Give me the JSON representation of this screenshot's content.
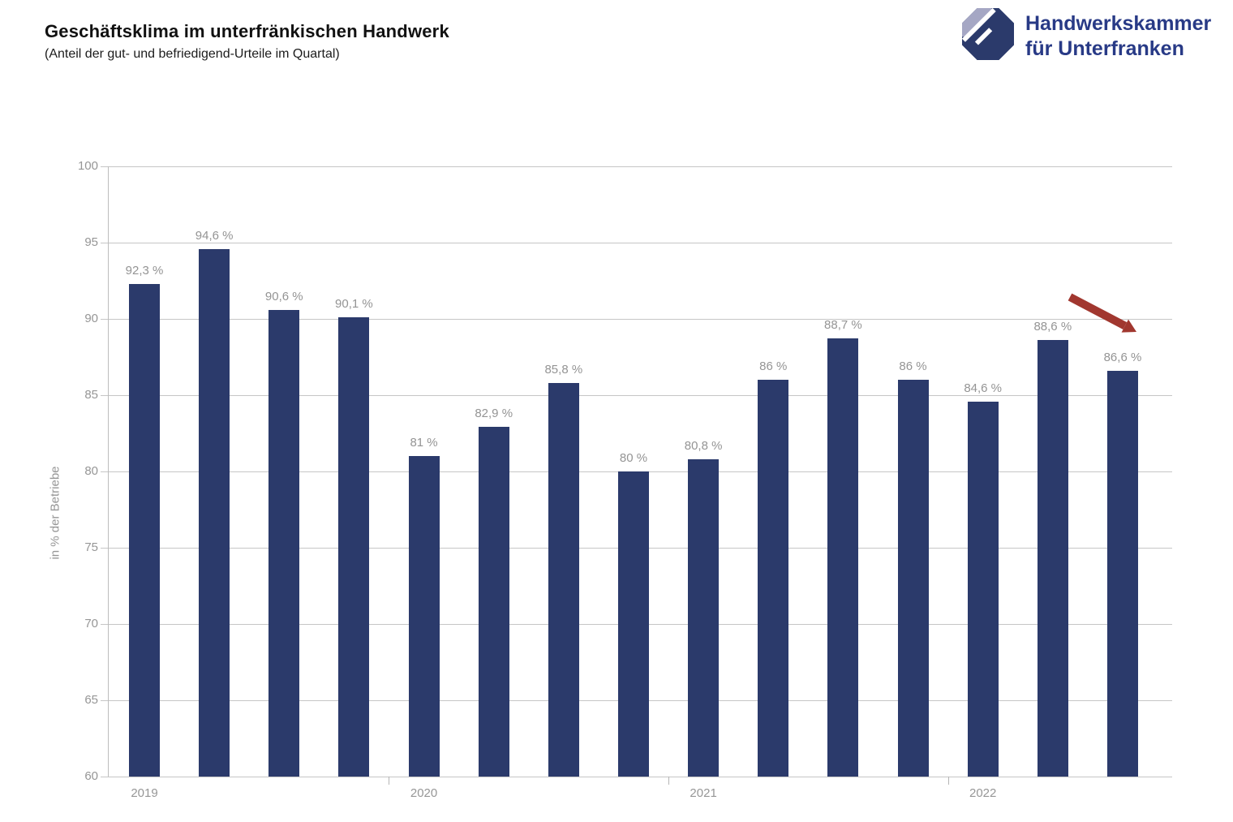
{
  "header": {
    "title": "Geschäftsklima im unterfränkischen Handwerk",
    "subtitle": "(Anteil der gut- und befriedigend-Urteile im Quartal)"
  },
  "logo": {
    "name": "Handwerkskammer für Unterfranken",
    "line1": "Handwerkskammer",
    "line2": "für Unterfranken",
    "icon": "octagon-emblem-icon",
    "colors": {
      "dark": "#2b3a6b",
      "light": "#a5a7c4",
      "text": "#283a86"
    }
  },
  "chart_data": {
    "type": "bar",
    "title": "Geschäftsklima im unterfränkischen Handwerk",
    "subtitle": "(Anteil der gut- und befriedigend-Urteile im Quartal)",
    "ylabel": "in % der Betriebe",
    "xlabel": "",
    "ylim": [
      60,
      100
    ],
    "yticks": [
      100,
      95,
      90,
      85,
      80,
      75,
      70,
      65,
      60
    ],
    "grid": true,
    "legend": "none",
    "bar_color": "#2b3a6b",
    "value_label_color": "#949494",
    "bars": [
      {
        "period": "2019 Q1",
        "value": 92.3,
        "label": "92,3 %"
      },
      {
        "period": "2019 Q2",
        "value": 94.6,
        "label": "94,6 %"
      },
      {
        "period": "2019 Q3",
        "value": 90.6,
        "label": "90,6 %"
      },
      {
        "period": "2019 Q4",
        "value": 90.1,
        "label": "90,1 %"
      },
      {
        "period": "2020 Q1",
        "value": 81.0,
        "label": "81 %"
      },
      {
        "period": "2020 Q2",
        "value": 82.9,
        "label": "82,9 %"
      },
      {
        "period": "2020 Q3",
        "value": 85.8,
        "label": "85,8 %"
      },
      {
        "period": "2020 Q4",
        "value": 80.0,
        "label": "80 %"
      },
      {
        "period": "2021 Q1",
        "value": 80.8,
        "label": "80,8 %"
      },
      {
        "period": "2021 Q2",
        "value": 86.0,
        "label": "86 %"
      },
      {
        "period": "2021 Q3",
        "value": 88.7,
        "label": "88,7 %"
      },
      {
        "period": "2021 Q4",
        "value": 86.0,
        "label": "86 %"
      },
      {
        "period": "2022 Q1",
        "value": 84.6,
        "label": "84,6 %"
      },
      {
        "period": "2022 Q2",
        "value": 88.6,
        "label": "88,6 %"
      },
      {
        "period": "2022 Q3",
        "value": 86.6,
        "label": "86,6 %"
      }
    ],
    "year_labels": [
      {
        "label": "2019",
        "bar_index": 0
      },
      {
        "label": "2020",
        "bar_index": 4
      },
      {
        "label": "2021",
        "bar_index": 8
      },
      {
        "label": "2022",
        "bar_index": 12
      }
    ],
    "annotation": {
      "name": "downward-trend-arrow",
      "meaning": "decline indicator over last quarter",
      "color": "#a1372f"
    }
  }
}
